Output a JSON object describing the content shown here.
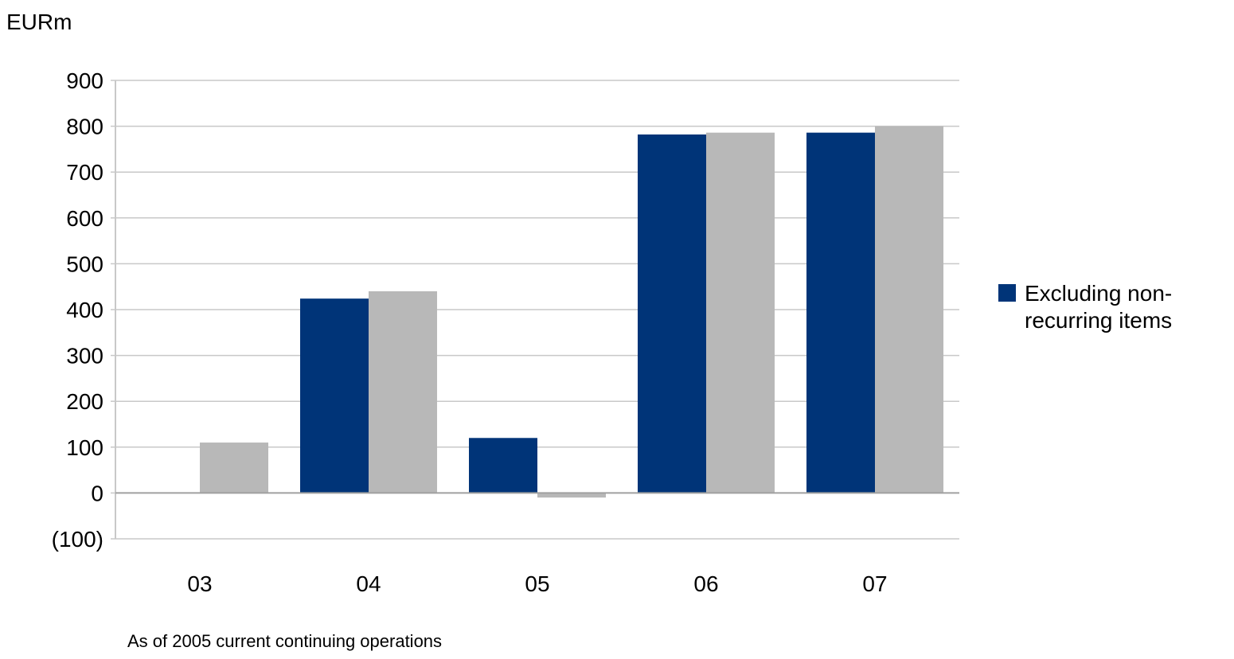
{
  "chart_data": {
    "type": "bar",
    "unit_label": "EURm",
    "categories": [
      "03",
      "04",
      "05",
      "06",
      "07"
    ],
    "y_ticks": [
      900,
      800,
      700,
      600,
      500,
      400,
      300,
      200,
      100,
      0,
      -100
    ],
    "y_tick_labels": [
      "900",
      "800",
      "700",
      "600",
      "500",
      "400",
      "300",
      "200",
      "100",
      "0",
      "(100)"
    ],
    "ylim": [
      -100,
      900
    ],
    "grid": true,
    "legend_position": "right",
    "footnote": "As of 2005 current continuing operations",
    "series": [
      {
        "name": "Excluding non-recurring items",
        "color": "#003478",
        "values": [
          0,
          424,
          120,
          782,
          786
        ]
      },
      {
        "color": "#b8b8b8",
        "values": [
          110,
          440,
          -10,
          786,
          800
        ]
      }
    ]
  }
}
